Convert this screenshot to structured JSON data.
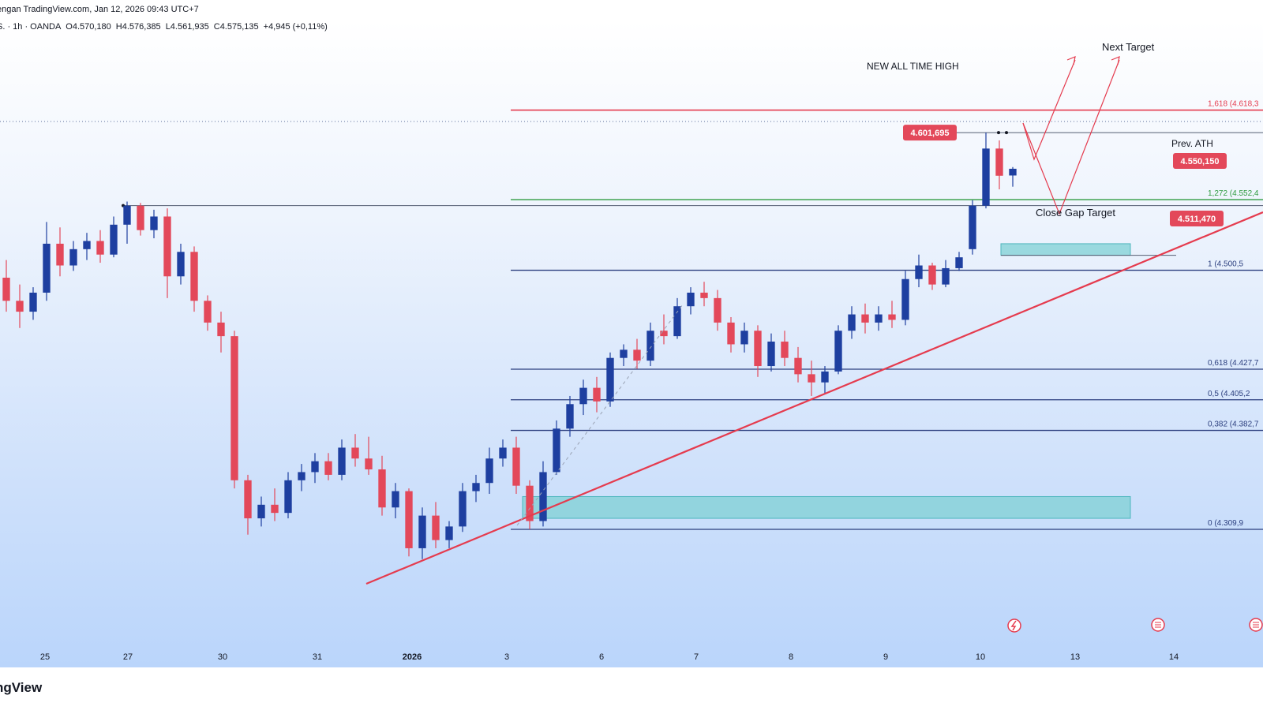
{
  "header": {
    "publisher": "engan TradingView.com, Jan 12, 2026 09:43 UTC+7"
  },
  "symbol_bar": {
    "symbol": "S. · 1h · OANDA",
    "open": "O4.570,180",
    "high": "H4.576,385",
    "low": "L4.561,935",
    "close": "C4.575,135",
    "change": "+4,945 (+0,11%)"
  },
  "brand": "ngView",
  "colors": {
    "up": "#1e3fa0",
    "down": "#e3485a",
    "trend": "#e53b4e",
    "zone": "#7fd0d4",
    "level": "#2b3e7e",
    "green": "#2e9b3f"
  },
  "annotations": {
    "next_target": "Next Target",
    "ath": "NEW ALL TIME HIGH",
    "ath_price": "4.601,695",
    "prev_ath": "Prev. ATH",
    "prev_ath_price": "4.550,150",
    "close_gap": "Close Gap Target",
    "gap_price": "4.511,470"
  },
  "chart_data": {
    "type": "candlestick",
    "title": "",
    "x_ticks": [
      "25",
      "27",
      "30",
      "31",
      "2026",
      "3",
      "6",
      "7",
      "8",
      "9",
      "10",
      "13",
      "14"
    ],
    "fib_levels": [
      {
        "label": "1,618 (4.618,3",
        "value": 4618.3
      },
      {
        "label": "1,272 (4.552,4",
        "value": 4552.4
      },
      {
        "label": "1 (4.500,5",
        "value": 4500.5
      },
      {
        "label": "0,618 (4.427,7",
        "value": 4427.7
      },
      {
        "label": "0,5 (4.405,2",
        "value": 4405.2
      },
      {
        "label": "0,382 (4.382,7",
        "value": 4382.7
      },
      {
        "label": "0 (4.309,9",
        "value": 4309.9
      }
    ],
    "key_prices": [
      {
        "label": "4.601,695",
        "value": 4601.695
      },
      {
        "label": "4.550,150",
        "value": 4550.15
      },
      {
        "label": "4.511,470",
        "value": 4511.47
      }
    ],
    "candles": [
      {
        "x": "Dec 25",
        "o": 4495,
        "h": 4508,
        "l": 4470,
        "c": 4478
      },
      {
        "x": "Dec 25",
        "o": 4478,
        "h": 4490,
        "l": 4458,
        "c": 4470
      },
      {
        "x": "Dec 25",
        "o": 4470,
        "h": 4488,
        "l": 4464,
        "c": 4484
      },
      {
        "x": "Dec 26",
        "o": 4484,
        "h": 4536,
        "l": 4478,
        "c": 4520
      },
      {
        "x": "Dec 26",
        "o": 4520,
        "h": 4532,
        "l": 4496,
        "c": 4504
      },
      {
        "x": "Dec 26",
        "o": 4504,
        "h": 4522,
        "l": 4500,
        "c": 4516
      },
      {
        "x": "Dec 26",
        "o": 4516,
        "h": 4528,
        "l": 4508,
        "c": 4522
      },
      {
        "x": "Dec 26",
        "o": 4522,
        "h": 4530,
        "l": 4506,
        "c": 4512
      },
      {
        "x": "Dec 26",
        "o": 4512,
        "h": 4540,
        "l": 4510,
        "c": 4534
      },
      {
        "x": "Dec 27",
        "o": 4534,
        "h": 4551,
        "l": 4520,
        "c": 4548
      },
      {
        "x": "Dec 27",
        "o": 4548,
        "h": 4550,
        "l": 4526,
        "c": 4530
      },
      {
        "x": "Dec 27",
        "o": 4530,
        "h": 4545,
        "l": 4524,
        "c": 4540
      },
      {
        "x": "Dec 29",
        "o": 4540,
        "h": 4546,
        "l": 4480,
        "c": 4496
      },
      {
        "x": "Dec 29",
        "o": 4496,
        "h": 4520,
        "l": 4490,
        "c": 4514
      },
      {
        "x": "Dec 29",
        "o": 4514,
        "h": 4518,
        "l": 4470,
        "c": 4478
      },
      {
        "x": "Dec 29",
        "o": 4478,
        "h": 4482,
        "l": 4456,
        "c": 4462
      },
      {
        "x": "Dec 29",
        "o": 4462,
        "h": 4470,
        "l": 4440,
        "c": 4452
      },
      {
        "x": "Dec 29",
        "o": 4452,
        "h": 4456,
        "l": 4340,
        "c": 4346
      },
      {
        "x": "Dec 30",
        "o": 4346,
        "h": 4350,
        "l": 4306,
        "c": 4318
      },
      {
        "x": "Dec 30",
        "o": 4318,
        "h": 4334,
        "l": 4312,
        "c": 4328
      },
      {
        "x": "Dec 30",
        "o": 4328,
        "h": 4340,
        "l": 4316,
        "c": 4322
      },
      {
        "x": "Dec 30",
        "o": 4322,
        "h": 4352,
        "l": 4318,
        "c": 4346
      },
      {
        "x": "Dec 30",
        "o": 4346,
        "h": 4358,
        "l": 4338,
        "c": 4352
      },
      {
        "x": "Dec 30",
        "o": 4352,
        "h": 4366,
        "l": 4344,
        "c": 4360
      },
      {
        "x": "Dec 30",
        "o": 4360,
        "h": 4366,
        "l": 4346,
        "c": 4350
      },
      {
        "x": "Dec 31",
        "o": 4350,
        "h": 4376,
        "l": 4346,
        "c": 4370
      },
      {
        "x": "Dec 31",
        "o": 4370,
        "h": 4380,
        "l": 4356,
        "c": 4362
      },
      {
        "x": "Dec 31",
        "o": 4362,
        "h": 4378,
        "l": 4350,
        "c": 4354
      },
      {
        "x": "Dec 31",
        "o": 4354,
        "h": 4364,
        "l": 4320,
        "c": 4326
      },
      {
        "x": "Dec 31",
        "o": 4326,
        "h": 4344,
        "l": 4318,
        "c": 4338
      },
      {
        "x": "Jan 1",
        "o": 4338,
        "h": 4340,
        "l": 4290,
        "c": 4296
      },
      {
        "x": "Jan 1",
        "o": 4296,
        "h": 4326,
        "l": 4288,
        "c": 4320
      },
      {
        "x": "Jan 2",
        "o": 4320,
        "h": 4330,
        "l": 4296,
        "c": 4302
      },
      {
        "x": "Jan 2",
        "o": 4302,
        "h": 4316,
        "l": 4296,
        "c": 4312
      },
      {
        "x": "Jan 2",
        "o": 4312,
        "h": 4344,
        "l": 4308,
        "c": 4338
      },
      {
        "x": "Jan 2",
        "o": 4338,
        "h": 4350,
        "l": 4330,
        "c": 4344
      },
      {
        "x": "Jan 2",
        "o": 4344,
        "h": 4370,
        "l": 4336,
        "c": 4362
      },
      {
        "x": "Jan 2",
        "o": 4362,
        "h": 4376,
        "l": 4356,
        "c": 4370
      },
      {
        "x": "Jan 2",
        "o": 4370,
        "h": 4378,
        "l": 4336,
        "c": 4342
      },
      {
        "x": "Jan 2",
        "o": 4342,
        "h": 4346,
        "l": 4310,
        "c": 4316
      },
      {
        "x": "Jan 3",
        "o": 4316,
        "h": 4360,
        "l": 4312,
        "c": 4352
      },
      {
        "x": "Jan 3",
        "o": 4352,
        "h": 4390,
        "l": 4350,
        "c": 4384
      },
      {
        "x": "Jan 5",
        "o": 4384,
        "h": 4408,
        "l": 4378,
        "c": 4402
      },
      {
        "x": "Jan 5",
        "o": 4402,
        "h": 4420,
        "l": 4394,
        "c": 4414
      },
      {
        "x": "Jan 5",
        "o": 4414,
        "h": 4422,
        "l": 4396,
        "c": 4404
      },
      {
        "x": "Jan 6",
        "o": 4404,
        "h": 4440,
        "l": 4400,
        "c": 4436
      },
      {
        "x": "Jan 6",
        "o": 4436,
        "h": 4446,
        "l": 4430,
        "c": 4442
      },
      {
        "x": "Jan 6",
        "o": 4442,
        "h": 4450,
        "l": 4428,
        "c": 4434
      },
      {
        "x": "Jan 6",
        "o": 4434,
        "h": 4462,
        "l": 4430,
        "c": 4456
      },
      {
        "x": "Jan 6",
        "o": 4456,
        "h": 4468,
        "l": 4446,
        "c": 4452
      },
      {
        "x": "Jan 7",
        "o": 4452,
        "h": 4480,
        "l": 4450,
        "c": 4474
      },
      {
        "x": "Jan 7",
        "o": 4474,
        "h": 4488,
        "l": 4468,
        "c": 4484
      },
      {
        "x": "Jan 7",
        "o": 4484,
        "h": 4492,
        "l": 4474,
        "c": 4480
      },
      {
        "x": "Jan 7",
        "o": 4480,
        "h": 4486,
        "l": 4456,
        "c": 4462
      },
      {
        "x": "Jan 7",
        "o": 4462,
        "h": 4466,
        "l": 4440,
        "c": 4446
      },
      {
        "x": "Jan 8",
        "o": 4446,
        "h": 4462,
        "l": 4440,
        "c": 4456
      },
      {
        "x": "Jan 8",
        "o": 4456,
        "h": 4460,
        "l": 4422,
        "c": 4430
      },
      {
        "x": "Jan 8",
        "o": 4430,
        "h": 4454,
        "l": 4426,
        "c": 4448
      },
      {
        "x": "Jan 8",
        "o": 4448,
        "h": 4456,
        "l": 4430,
        "c": 4436
      },
      {
        "x": "Jan 8",
        "o": 4436,
        "h": 4444,
        "l": 4418,
        "c": 4424
      },
      {
        "x": "Jan 9",
        "o": 4424,
        "h": 4434,
        "l": 4408,
        "c": 4418
      },
      {
        "x": "Jan 9",
        "o": 4418,
        "h": 4430,
        "l": 4410,
        "c": 4426
      },
      {
        "x": "Jan 9",
        "o": 4426,
        "h": 4460,
        "l": 4424,
        "c": 4456
      },
      {
        "x": "Jan 9",
        "o": 4456,
        "h": 4474,
        "l": 4450,
        "c": 4468
      },
      {
        "x": "Jan 9",
        "o": 4468,
        "h": 4476,
        "l": 4454,
        "c": 4462
      },
      {
        "x": "Jan 9",
        "o": 4462,
        "h": 4474,
        "l": 4456,
        "c": 4468
      },
      {
        "x": "Jan 9",
        "o": 4468,
        "h": 4478,
        "l": 4458,
        "c": 4464
      },
      {
        "x": "Jan 10",
        "o": 4464,
        "h": 4500,
        "l": 4460,
        "c": 4494
      },
      {
        "x": "Jan 10",
        "o": 4494,
        "h": 4512,
        "l": 4488,
        "c": 4504
      },
      {
        "x": "Jan 10",
        "o": 4504,
        "h": 4506,
        "l": 4486,
        "c": 4490
      },
      {
        "x": "Jan 10",
        "o": 4490,
        "h": 4508,
        "l": 4488,
        "c": 4502
      },
      {
        "x": "Jan 10",
        "o": 4502,
        "h": 4514,
        "l": 4500,
        "c": 4510
      },
      {
        "x": "Jan 12",
        "o": 4516,
        "h": 4552,
        "l": 4512,
        "c": 4548
      },
      {
        "x": "Jan 12",
        "o": 4548,
        "h": 4601.695,
        "l": 4546,
        "c": 4590
      },
      {
        "x": "Jan 12",
        "o": 4590,
        "h": 4596,
        "l": 4560,
        "c": 4570
      },
      {
        "x": "Jan 12",
        "o": 4570.18,
        "h": 4576.385,
        "l": 4561.935,
        "c": 4575.135
      }
    ],
    "trendline": "rising support from Jan 1 low (~4290) through Jan 2 low (~4310)",
    "zones": [
      {
        "label": "",
        "from": 4318,
        "to": 4334
      },
      {
        "label": "Close Gap Target",
        "from": 4511.47,
        "to": 4520
      }
    ]
  }
}
